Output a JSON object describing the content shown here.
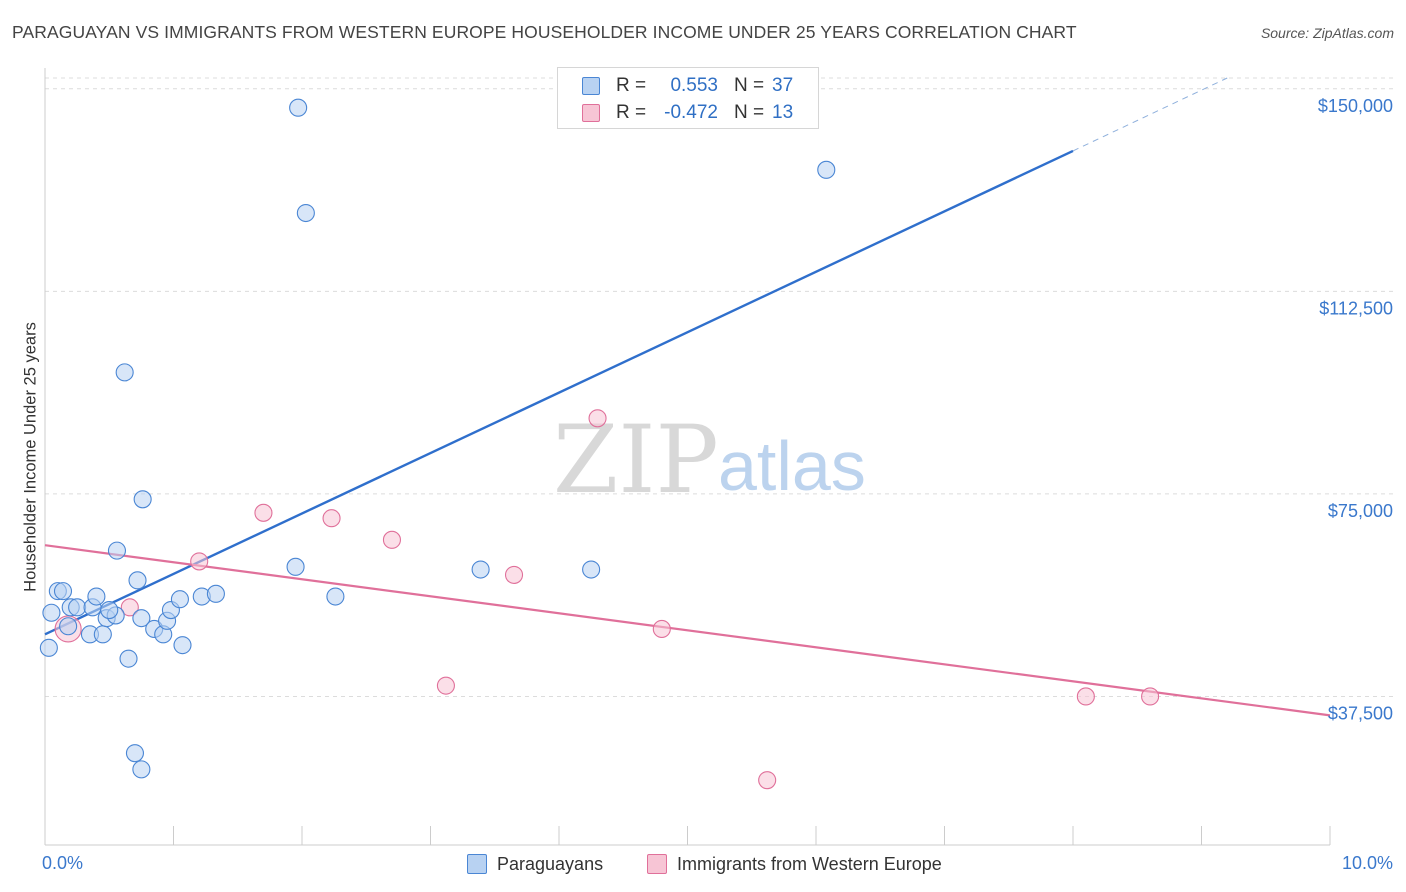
{
  "chart_data": {
    "type": "scatter",
    "title": "PARAGUAYAN VS IMMIGRANTS FROM WESTERN EUROPE HOUSEHOLDER INCOME UNDER 25 YEARS CORRELATION CHART",
    "source": "Source: ZipAtlas.com",
    "watermark": {
      "zip": "ZIP",
      "atlas": "atlas"
    },
    "xlabel": "",
    "ylabel": "Householder Income Under 25 years",
    "xlim": [
      0,
      10
    ],
    "ylim": [
      10000,
      152000
    ],
    "x_tick_labels": [
      "0.0%",
      "10.0%"
    ],
    "y_ticks": [
      37500,
      75000,
      112500,
      150000
    ],
    "y_tick_labels": [
      "$37,500",
      "$75,000",
      "$112,500",
      "$150,000"
    ],
    "grid": "horizontal dashed",
    "legend_stats": [
      {
        "r_label": "R =",
        "r_value": "0.553",
        "n_label": "N =",
        "n_value": "37"
      },
      {
        "r_label": "R =",
        "r_value": "-0.472",
        "n_label": "N =",
        "n_value": "13"
      }
    ],
    "series": [
      {
        "name": "Paraguayans",
        "color": "#4a86d4",
        "fill": "#b8d2f2",
        "points": [
          [
            0.03,
            46500
          ],
          [
            0.05,
            53000
          ],
          [
            0.1,
            57000
          ],
          [
            0.14,
            57000
          ],
          [
            0.18,
            50500
          ],
          [
            0.2,
            54000
          ],
          [
            0.25,
            54000
          ],
          [
            0.35,
            49000
          ],
          [
            0.37,
            54000
          ],
          [
            0.4,
            56000
          ],
          [
            0.45,
            49000
          ],
          [
            0.48,
            52000
          ],
          [
            0.55,
            52500
          ],
          [
            0.56,
            64500
          ],
          [
            0.62,
            97500
          ],
          [
            0.65,
            44500
          ],
          [
            0.7,
            27000
          ],
          [
            0.72,
            59000
          ],
          [
            0.75,
            52000
          ],
          [
            0.75,
            24000
          ],
          [
            0.76,
            74000
          ],
          [
            0.85,
            50000
          ],
          [
            0.92,
            49000
          ],
          [
            0.95,
            51500
          ],
          [
            0.98,
            53500
          ],
          [
            1.05,
            55500
          ],
          [
            1.07,
            47000
          ],
          [
            1.22,
            56000
          ],
          [
            1.33,
            56500
          ],
          [
            1.97,
            146500
          ],
          [
            2.03,
            127000
          ],
          [
            1.95,
            61500
          ],
          [
            2.26,
            56000
          ],
          [
            3.39,
            61000
          ],
          [
            4.25,
            61000
          ],
          [
            6.08,
            135000
          ],
          [
            0.5,
            53500
          ]
        ],
        "trend": {
          "x0": 0.0,
          "y0": 49000,
          "x1": 8.0,
          "y1": 138500,
          "dash_to_x": 9.2,
          "dash_to_y": 152000
        }
      },
      {
        "name": "Immigrants from Western Europe",
        "color": "#e0709a",
        "fill": "#f7c5d5",
        "points": [
          [
            0.18,
            50000
          ],
          [
            0.66,
            54000
          ],
          [
            1.2,
            62500
          ],
          [
            1.7,
            71500
          ],
          [
            2.23,
            70500
          ],
          [
            2.7,
            66500
          ],
          [
            3.65,
            60000
          ],
          [
            4.3,
            89000
          ],
          [
            4.8,
            50000
          ],
          [
            3.12,
            39500
          ],
          [
            5.62,
            22000
          ],
          [
            8.1,
            37500
          ],
          [
            8.6,
            37500
          ]
        ],
        "trend": {
          "x0": 0.0,
          "y0": 65500,
          "x1": 10.0,
          "y1": 34000
        }
      }
    ]
  }
}
